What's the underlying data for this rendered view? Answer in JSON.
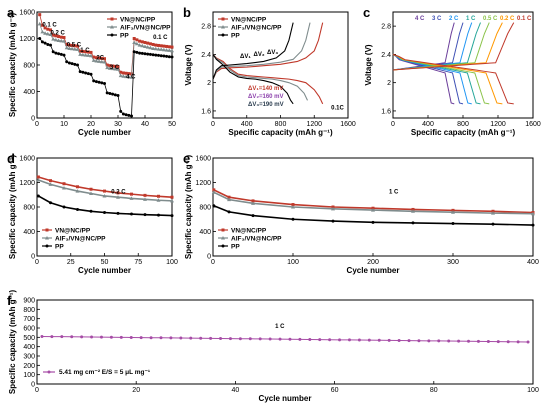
{
  "colors": {
    "vn": "#c0392b",
    "alf": "#7f8c8d",
    "pp": "#000000",
    "f": "#a64ca6"
  },
  "chart_data": [
    {
      "id": "a",
      "type": "line",
      "label": "a",
      "xlabel": "Cycle number",
      "ylabel": "Specific capacity (mAh g⁻¹)",
      "xlim": [
        0,
        50
      ],
      "ylim": [
        0,
        1600
      ],
      "xticks": [
        0,
        10,
        20,
        30,
        40,
        50
      ],
      "yticks": [
        0,
        400,
        800,
        1200,
        1600
      ],
      "legend": [
        "VN@NC/PP",
        "AlF₃/VN@NC/PP",
        "PP"
      ],
      "rate_labels": [
        {
          "text": "0.1 C",
          "x": 2,
          "y": 1380
        },
        {
          "text": "0.2 C",
          "x": 5,
          "y": 1260
        },
        {
          "text": "0.5 C",
          "x": 11,
          "y": 1080
        },
        {
          "text": "1 C",
          "x": 16,
          "y": 1000
        },
        {
          "text": "2C",
          "x": 22,
          "y": 880
        },
        {
          "text": "3 C",
          "x": 27,
          "y": 740
        },
        {
          "text": "4 C",
          "x": 33,
          "y": 600
        },
        {
          "text": "0.1 C",
          "x": 43,
          "y": 1190
        }
      ],
      "series": [
        {
          "name": "VN@NC/PP",
          "x": [
            1,
            2,
            3,
            4,
            5,
            6,
            7,
            8,
            9,
            10,
            11,
            12,
            13,
            14,
            15,
            16,
            17,
            18,
            19,
            20,
            21,
            22,
            23,
            24,
            25,
            26,
            27,
            28,
            29,
            30,
            31,
            32,
            33,
            34,
            35,
            36,
            37,
            38,
            39,
            40,
            41,
            42,
            43,
            44,
            45,
            46,
            47,
            48,
            49,
            50
          ],
          "y": [
            1560,
            1400,
            1360,
            1340,
            1330,
            1250,
            1240,
            1230,
            1220,
            1215,
            1110,
            1100,
            1095,
            1090,
            1085,
            1010,
            1005,
            1000,
            995,
            990,
            920,
            910,
            905,
            900,
            895,
            800,
            790,
            785,
            780,
            775,
            690,
            680,
            675,
            670,
            665,
            1200,
            1180,
            1160,
            1150,
            1140,
            1130,
            1120,
            1110,
            1100,
            1095,
            1090,
            1085,
            1080,
            1075,
            1070
          ]
        },
        {
          "name": "AlF₃/VN@NC/PP",
          "x": [
            1,
            2,
            3,
            4,
            5,
            6,
            7,
            8,
            9,
            10,
            11,
            12,
            13,
            14,
            15,
            16,
            17,
            18,
            19,
            20,
            21,
            22,
            23,
            24,
            25,
            26,
            27,
            28,
            29,
            30,
            31,
            32,
            33,
            34,
            35,
            36,
            37,
            38,
            39,
            40,
            41,
            42,
            43,
            44,
            45,
            46,
            47,
            48,
            49,
            50
          ],
          "y": [
            1420,
            1300,
            1280,
            1270,
            1260,
            1190,
            1180,
            1170,
            1165,
            1160,
            1060,
            1050,
            1045,
            1040,
            1035,
            960,
            955,
            950,
            945,
            940,
            870,
            860,
            855,
            850,
            845,
            760,
            750,
            745,
            740,
            735,
            640,
            630,
            625,
            620,
            615,
            1140,
            1120,
            1100,
            1090,
            1080,
            1070,
            1060,
            1050,
            1045,
            1040,
            1035,
            1030,
            1025,
            1020,
            1015
          ]
        },
        {
          "name": "PP",
          "x": [
            1,
            2,
            3,
            4,
            5,
            6,
            7,
            8,
            9,
            10,
            11,
            12,
            13,
            14,
            15,
            16,
            17,
            18,
            19,
            20,
            21,
            22,
            23,
            24,
            25,
            26,
            27,
            28,
            29,
            30,
            31,
            32,
            33,
            34,
            35,
            36,
            37,
            38,
            39,
            40,
            41,
            42,
            43,
            44,
            45,
            46,
            47,
            48,
            49,
            50
          ],
          "y": [
            1200,
            1150,
            1130,
            1110,
            1100,
            1000,
            980,
            970,
            960,
            950,
            850,
            830,
            820,
            810,
            800,
            700,
            690,
            680,
            670,
            660,
            560,
            550,
            540,
            530,
            520,
            380,
            370,
            360,
            350,
            340,
            100,
            60,
            50,
            40,
            30,
            1000,
            990,
            980,
            975,
            970,
            965,
            960,
            955,
            950,
            945,
            940,
            935,
            930,
            925,
            920
          ]
        }
      ]
    },
    {
      "id": "b",
      "type": "line",
      "label": "b",
      "xlabel": "Specific capacity (mAh g⁻¹)",
      "ylabel": "Voltage (V)",
      "xlim": [
        0,
        1600
      ],
      "ylim": [
        1.5,
        3.0
      ],
      "xticks": [
        0,
        400,
        800,
        1200,
        1600
      ],
      "yticks": [
        1.6,
        2.0,
        2.4,
        2.8
      ],
      "legend": [
        "VN@NC/PP",
        "AlF₃/VN@NC/PP",
        "PP"
      ],
      "annotations": [
        "ΔV₁=140 mV",
        "ΔV₂=160 mV",
        "ΔV₃=190 mV"
      ],
      "delta_labels": [
        "ΔV₁",
        "ΔV₂",
        "ΔV₃"
      ],
      "rate_text": "0.1C",
      "series": [
        {
          "name": "VN@NC/PP-discharge",
          "x": [
            0,
            40,
            120,
            200,
            300,
            400,
            500,
            600,
            700,
            800,
            900,
            1000,
            1100,
            1200,
            1260,
            1300
          ],
          "y": [
            2.4,
            2.35,
            2.3,
            2.2,
            2.12,
            2.1,
            2.09,
            2.08,
            2.07,
            2.06,
            2.05,
            2.03,
            2.0,
            1.9,
            1.8,
            1.7
          ]
        },
        {
          "name": "VN@NC/PP-charge",
          "x": [
            0,
            40,
            100,
            200,
            400,
            600,
            800,
            1000,
            1100,
            1200,
            1250,
            1280,
            1300
          ],
          "y": [
            2.05,
            2.15,
            2.2,
            2.21,
            2.22,
            2.24,
            2.26,
            2.3,
            2.35,
            2.45,
            2.6,
            2.75,
            2.85
          ]
        },
        {
          "name": "AlF₃/VN@NC/PP-discharge",
          "x": [
            0,
            40,
            120,
            200,
            300,
            400,
            500,
            600,
            700,
            800,
            900,
            1000,
            1080,
            1120
          ],
          "y": [
            2.4,
            2.34,
            2.28,
            2.18,
            2.1,
            2.08,
            2.07,
            2.06,
            2.05,
            2.03,
            2.0,
            1.95,
            1.85,
            1.75
          ]
        },
        {
          "name": "AlF₃/VN@NC/PP-charge",
          "x": [
            0,
            40,
            100,
            200,
            400,
            600,
            800,
            950,
            1050,
            1100,
            1130,
            1150
          ],
          "y": [
            2.05,
            2.16,
            2.22,
            2.23,
            2.24,
            2.26,
            2.29,
            2.33,
            2.45,
            2.6,
            2.75,
            2.85
          ]
        },
        {
          "name": "PP-discharge",
          "x": [
            0,
            40,
            120,
            200,
            300,
            400,
            500,
            600,
            700,
            800,
            880,
            920,
            950
          ],
          "y": [
            2.4,
            2.33,
            2.25,
            2.15,
            2.08,
            2.06,
            2.05,
            2.03,
            2.0,
            1.95,
            1.85,
            1.75,
            1.7
          ]
        },
        {
          "name": "PP-charge",
          "x": [
            0,
            40,
            100,
            200,
            400,
            600,
            750,
            850,
            900,
            930,
            950
          ],
          "y": [
            2.05,
            2.18,
            2.24,
            2.25,
            2.27,
            2.3,
            2.35,
            2.45,
            2.6,
            2.75,
            2.85
          ]
        }
      ]
    },
    {
      "id": "c",
      "type": "line",
      "label": "c",
      "xlabel": "Specific capacity (mAh g⁻¹)",
      "ylabel": "Voltage (V)",
      "xlim": [
        0,
        1600
      ],
      "ylim": [
        1.5,
        3.0
      ],
      "xticks": [
        0,
        400,
        800,
        1200,
        1600
      ],
      "yticks": [
        1.6,
        2.0,
        2.4,
        2.8
      ],
      "rates": [
        "4 C",
        "3 C",
        "2 C",
        "1 C",
        "0.5 C",
        "0.2 C",
        "0.1 C"
      ],
      "rate_colors": [
        "#6a3d9a",
        "#3f51b5",
        "#2196f3",
        "#26a69a",
        "#8bc34a",
        "#ff9800",
        "#c0392b"
      ],
      "capacities": [
        700,
        800,
        900,
        1000,
        1100,
        1250,
        1380
      ]
    },
    {
      "id": "d",
      "type": "line",
      "label": "d",
      "xlabel": "Cycle number",
      "ylabel": "Specific capacity (mAh g⁻¹)",
      "xlim": [
        0,
        100
      ],
      "ylim": [
        0,
        1600
      ],
      "xticks": [
        0,
        25,
        50,
        75,
        100
      ],
      "yticks": [
        0,
        400,
        800,
        1200,
        1600
      ],
      "legend": [
        "VN@NC/PP",
        "AlF₃/VN@NC/PP",
        "PP"
      ],
      "rate_text": "0.2 C",
      "series": [
        {
          "name": "VN@NC/PP",
          "x": [
            1,
            10,
            20,
            30,
            40,
            50,
            60,
            70,
            80,
            90,
            100
          ],
          "y": [
            1290,
            1230,
            1180,
            1130,
            1090,
            1060,
            1030,
            1010,
            990,
            975,
            960
          ]
        },
        {
          "name": "AlF₃/VN@NC/PP",
          "x": [
            1,
            10,
            20,
            30,
            40,
            50,
            60,
            70,
            80,
            90,
            100
          ],
          "y": [
            1240,
            1170,
            1110,
            1060,
            1020,
            980,
            960,
            940,
            925,
            910,
            900
          ]
        },
        {
          "name": "PP",
          "x": [
            1,
            10,
            20,
            30,
            40,
            50,
            60,
            70,
            80,
            90,
            100
          ],
          "y": [
            980,
            870,
            800,
            760,
            730,
            710,
            695,
            685,
            675,
            668,
            660
          ]
        }
      ]
    },
    {
      "id": "e",
      "type": "line",
      "label": "e",
      "xlabel": "Cycle number",
      "ylabel": "Specific capacity (mAh g⁻¹)",
      "xlim": [
        0,
        400
      ],
      "ylim": [
        0,
        1600
      ],
      "xticks": [
        0,
        100,
        200,
        300,
        400
      ],
      "yticks": [
        0,
        400,
        800,
        1200,
        1600
      ],
      "legend": [
        "VN@NC/PP",
        "AlF₃/VN@NC/PP",
        "PP"
      ],
      "rate_text": "1 C",
      "series": [
        {
          "name": "VN@NC/PP",
          "x": [
            1,
            20,
            50,
            100,
            150,
            200,
            250,
            300,
            350,
            400
          ],
          "y": [
            1080,
            960,
            900,
            840,
            800,
            780,
            760,
            745,
            730,
            710
          ]
        },
        {
          "name": "AlF₃/VN@NC/PP",
          "x": [
            1,
            20,
            50,
            100,
            150,
            200,
            250,
            300,
            350,
            400
          ],
          "y": [
            1040,
            920,
            860,
            800,
            770,
            750,
            730,
            715,
            700,
            690
          ]
        },
        {
          "name": "PP",
          "x": [
            1,
            20,
            50,
            100,
            150,
            200,
            250,
            300,
            350,
            400
          ],
          "y": [
            820,
            720,
            660,
            600,
            570,
            550,
            540,
            530,
            520,
            505
          ]
        }
      ]
    },
    {
      "id": "f",
      "type": "scatter",
      "label": "f",
      "xlabel": "Cycle number",
      "ylabel": "Specific capacity (mAh g⁻¹)",
      "xlim": [
        0,
        100
      ],
      "ylim": [
        0,
        900
      ],
      "xticks": [
        0,
        20,
        40,
        60,
        80,
        100
      ],
      "yticks": [
        0,
        100,
        200,
        300,
        400,
        500,
        600,
        700,
        800,
        900
      ],
      "legend": [
        "5.41 mg cm⁻²  E/S = 5 μL mg⁻¹"
      ],
      "rate_text": "1 C",
      "series": [
        {
          "name": "5.41 mg cm⁻²  E/S = 5 μL mg⁻¹",
          "start": 510,
          "end": 450,
          "n": 100
        }
      ]
    }
  ]
}
